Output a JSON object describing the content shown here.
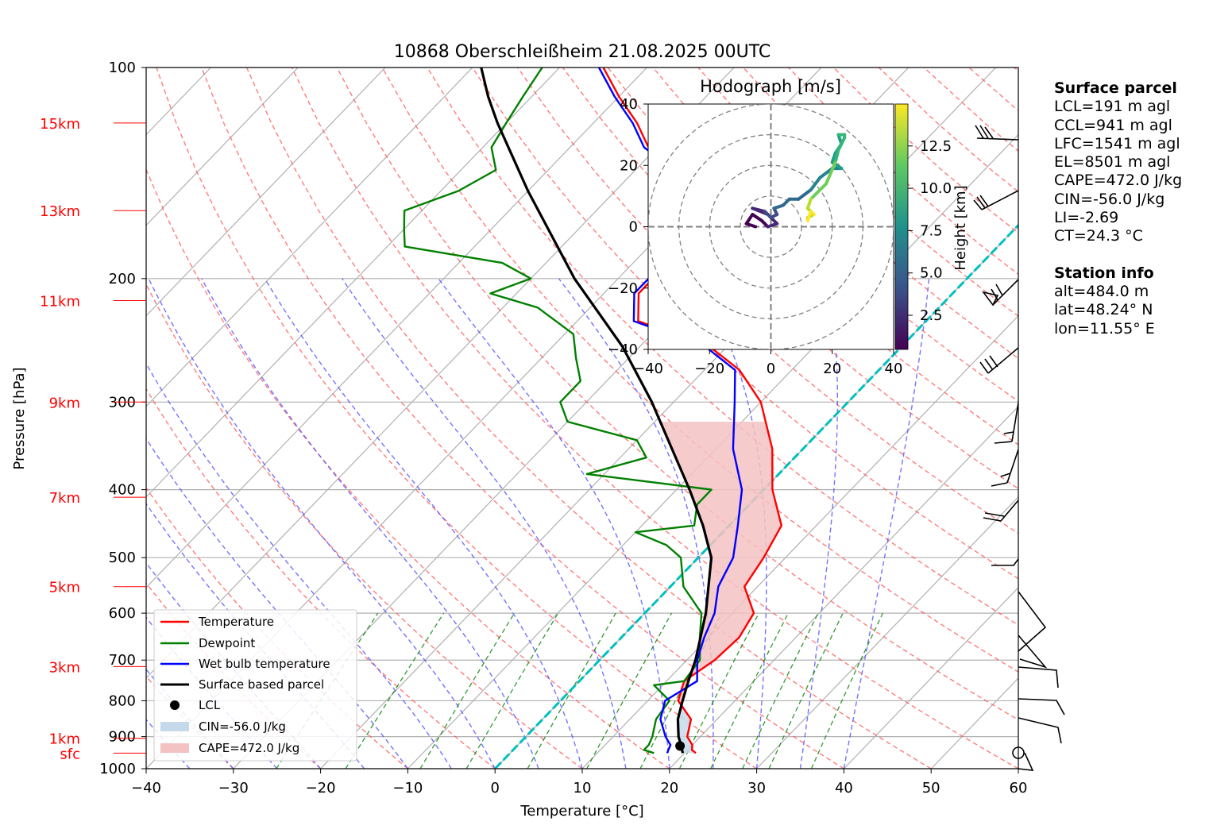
{
  "title": "10868 Oberschleißheim 21.08.2025 00UTC",
  "xlabel": "Temperature [°C]",
  "ylabel": "Pressure [hPa]",
  "x_ticks": [
    "−40",
    "−30",
    "−20",
    "−10",
    "0",
    "10",
    "20",
    "30",
    "40",
    "50",
    "60"
  ],
  "y_ticks": [
    "100",
    "200",
    "300",
    "400",
    "500",
    "600",
    "700",
    "800",
    "900",
    "1000"
  ],
  "height_labels": [
    "15km",
    "13km",
    "11km",
    "9km",
    "7km",
    "5km",
    "3km",
    "1km",
    "sfc"
  ],
  "legend": {
    "temperature": "Temperature",
    "dewpoint": "Dewpoint",
    "wetbulb": "Wet bulb temperature",
    "parcel": "Surface based parcel",
    "lcl": "LCL",
    "cin": "CIN=-56.0 J/kg",
    "cape": "CAPE=472.0 J/kg"
  },
  "hodograph": {
    "title": "Hodograph [m/s]",
    "ticks": [
      "−40",
      "−20",
      "0",
      "20",
      "40"
    ],
    "colorbar_label": "Height [km]",
    "colorbar_ticks": [
      "2.5",
      "5.0",
      "7.5",
      "10.0",
      "12.5"
    ]
  },
  "surface_parcel": {
    "heading": "Surface parcel",
    "lines": [
      "LCL=191 m agl",
      "CCL=941 m agl",
      "LFC=1541 m agl",
      "EL=8501 m agl",
      "CAPE=472.0 J/kg",
      "CIN=-56.0 J/kg",
      "LI=-2.69",
      "CT=24.3 °C"
    ]
  },
  "station_info": {
    "heading": "Station info",
    "lines": [
      "alt=484.0 m",
      "lat=48.24° N",
      "lon=11.55° E"
    ]
  },
  "colors": {
    "temperature": "#ff0000",
    "dewpoint": "#008000",
    "wetbulb": "#0000ff",
    "parcel": "#000000",
    "cape_fill": "#f4c2c2",
    "cin_fill": "#c5d9ea",
    "freezing": "#00bfbf"
  },
  "chart_data": {
    "type": "line",
    "x_range": [
      -40,
      60
    ],
    "p_range": [
      1000,
      100
    ],
    "series": [
      {
        "name": "Temperature",
        "points": [
          [
            950,
            21.3
          ],
          [
            940,
            20.5
          ],
          [
            925,
            20
          ],
          [
            900,
            18.5
          ],
          [
            850,
            17
          ],
          [
            800,
            13.5
          ],
          [
            750,
            12
          ],
          [
            700,
            13.2
          ],
          [
            650,
            13.5
          ],
          [
            600,
            12.5
          ],
          [
            550,
            8.5
          ],
          [
            500,
            7.5
          ],
          [
            450,
            6
          ],
          [
            400,
            1
          ],
          [
            350,
            -3.5
          ],
          [
            300,
            -10
          ],
          [
            270,
            -16
          ],
          [
            250,
            -22
          ],
          [
            230,
            -33
          ],
          [
            210,
            -36
          ],
          [
            190,
            -36
          ],
          [
            170,
            -37
          ],
          [
            160,
            -40
          ],
          [
            150,
            -41
          ],
          [
            140,
            -45
          ],
          [
            130,
            -51
          ],
          [
            120,
            -55
          ],
          [
            110,
            -60
          ],
          [
            100,
            -65
          ]
        ]
      },
      {
        "name": "Dewpoint",
        "points": [
          [
            950,
            16.5
          ],
          [
            940,
            15
          ],
          [
            925,
            15
          ],
          [
            900,
            14.5
          ],
          [
            850,
            13
          ],
          [
            800,
            12.5
          ],
          [
            760,
            9
          ],
          [
            750,
            12
          ],
          [
            700,
            11.5
          ],
          [
            650,
            9
          ],
          [
            600,
            6.5
          ],
          [
            550,
            1.5
          ],
          [
            500,
            -2
          ],
          [
            480,
            -5
          ],
          [
            460,
            -10
          ],
          [
            450,
            -4
          ],
          [
            420,
            -6
          ],
          [
            400,
            -6
          ],
          [
            380,
            -22
          ],
          [
            360,
            -17
          ],
          [
            340,
            -20
          ],
          [
            320,
            -30
          ],
          [
            300,
            -33
          ],
          [
            280,
            -33
          ],
          [
            260,
            -36
          ],
          [
            240,
            -39
          ],
          [
            220,
            -46
          ],
          [
            210,
            -53
          ],
          [
            200,
            -50
          ],
          [
            190,
            -55
          ],
          [
            180,
            -68
          ],
          [
            170,
            -70
          ],
          [
            160,
            -72
          ],
          [
            150,
            -68
          ],
          [
            140,
            -66
          ],
          [
            130,
            -69
          ],
          [
            120,
            -70
          ],
          [
            110,
            -71
          ],
          [
            100,
            -72
          ]
        ]
      },
      {
        "name": "Wet bulb temperature",
        "points": [
          [
            950,
            18
          ],
          [
            925,
            17.5
          ],
          [
            900,
            16
          ],
          [
            850,
            13.5
          ],
          [
            800,
            12
          ],
          [
            750,
            13.5
          ],
          [
            700,
            11.2
          ],
          [
            650,
            9.5
          ],
          [
            600,
            8
          ],
          [
            550,
            5.5
          ],
          [
            500,
            4
          ],
          [
            450,
            1
          ],
          [
            400,
            -2.5
          ],
          [
            350,
            -8
          ],
          [
            300,
            -13
          ],
          [
            270,
            -16.5
          ],
          [
            250,
            -22.5
          ],
          [
            230,
            -33.5
          ],
          [
            210,
            -36.5
          ],
          [
            190,
            -36.5
          ],
          [
            170,
            -37.5
          ],
          [
            160,
            -40.5
          ],
          [
            150,
            -41.5
          ],
          [
            140,
            -45.5
          ],
          [
            130,
            -51.5
          ],
          [
            120,
            -55.5
          ],
          [
            110,
            -60.5
          ],
          [
            100,
            -65.5
          ]
        ]
      },
      {
        "name": "Surface based parcel",
        "points": [
          [
            950,
            19.8
          ],
          [
            925,
            18.7
          ],
          [
            900,
            17.5
          ],
          [
            850,
            15.5
          ],
          [
            800,
            14
          ],
          [
            750,
            12.5
          ],
          [
            700,
            11
          ],
          [
            600,
            7
          ],
          [
            500,
            1.5
          ],
          [
            450,
            -3
          ],
          [
            400,
            -8.5
          ],
          [
            350,
            -15
          ],
          [
            300,
            -22.5
          ],
          [
            250,
            -32
          ],
          [
            200,
            -45
          ],
          [
            150,
            -60
          ],
          [
            120,
            -71
          ],
          [
            110,
            -75
          ],
          [
            100,
            -79
          ]
        ]
      }
    ],
    "lcl": {
      "p": 928,
      "t": 18.7
    }
  }
}
